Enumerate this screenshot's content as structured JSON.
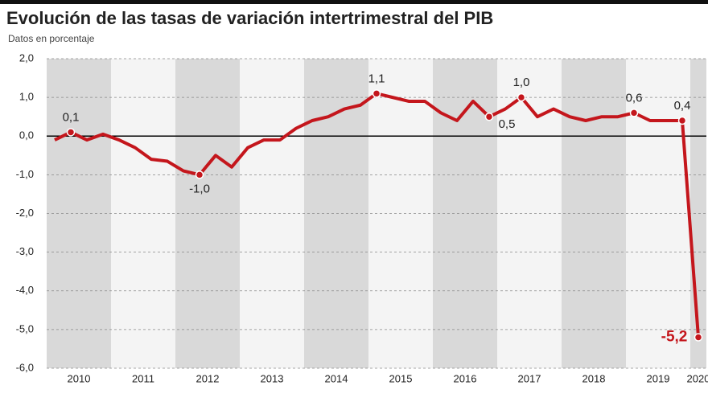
{
  "chart_data": {
    "type": "line",
    "title": "Evolución de las tasas de variación intertrimestral del PIB",
    "subtitle": "Datos en porcentaje",
    "categories": [
      "2010",
      null,
      null,
      null,
      "2011",
      null,
      null,
      null,
      "2012",
      null,
      null,
      null,
      "2013",
      null,
      null,
      null,
      "2014",
      null,
      null,
      null,
      "2015",
      null,
      null,
      null,
      "2016",
      null,
      null,
      null,
      "2017",
      null,
      null,
      null,
      "2018",
      null,
      null,
      null,
      "2019",
      null,
      null,
      null,
      "2020"
    ],
    "series": [
      {
        "name": "PIB",
        "color": "#c4161c",
        "values": [
          -0.1,
          0.1,
          -0.1,
          0.05,
          -0.1,
          -0.3,
          -0.6,
          -0.65,
          -0.9,
          -1.0,
          -0.5,
          -0.8,
          -0.3,
          -0.1,
          -0.1,
          0.2,
          0.4,
          0.5,
          0.7,
          0.8,
          1.1,
          1.0,
          0.9,
          0.9,
          0.6,
          0.4,
          0.9,
          0.5,
          0.7,
          1.0,
          0.5,
          0.7,
          0.5,
          0.4,
          0.5,
          0.5,
          0.6,
          0.4,
          0.4,
          0.4,
          -5.2
        ],
        "value_labels": [
          null,
          "0,1",
          null,
          null,
          null,
          null,
          null,
          null,
          null,
          "-1,0",
          null,
          null,
          null,
          null,
          null,
          null,
          null,
          null,
          null,
          null,
          "1,1",
          null,
          null,
          null,
          null,
          null,
          null,
          "0,5",
          null,
          "1,0",
          null,
          null,
          null,
          null,
          null,
          null,
          "0,6",
          null,
          null,
          "0,4",
          "-5,2"
        ]
      }
    ],
    "ylim": [
      -6,
      2
    ],
    "yticks": [
      {
        "value": -6,
        "label": "-6,0"
      },
      {
        "value": -5,
        "label": "-5,0"
      },
      {
        "value": -4,
        "label": "-4,0"
      },
      {
        "value": -3,
        "label": "-3,0"
      },
      {
        "value": -2,
        "label": "-2,0"
      },
      {
        "value": -1,
        "label": "-1,0"
      },
      {
        "value": 0,
        "label": "0,0"
      },
      {
        "value": 1,
        "label": "1,0"
      },
      {
        "value": 2,
        "label": "2,0"
      }
    ],
    "grid": true
  }
}
